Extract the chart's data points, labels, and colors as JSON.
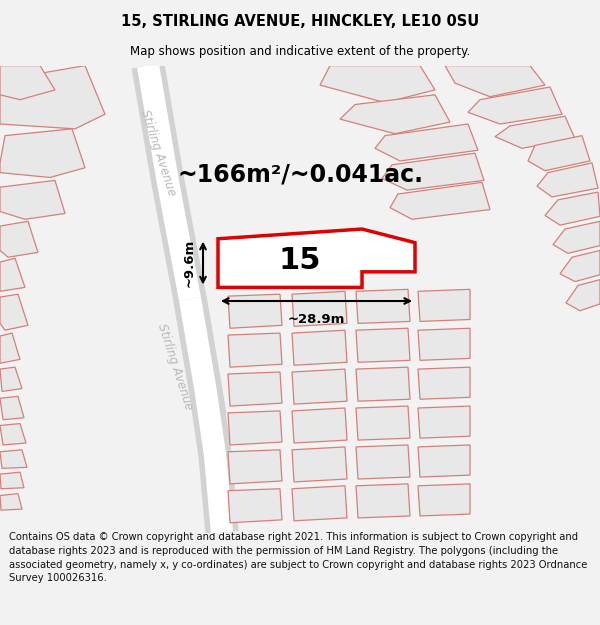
{
  "title": "15, STIRLING AVENUE, HINCKLEY, LE10 0SU",
  "subtitle": "Map shows position and indicative extent of the property.",
  "footer": "Contains OS data © Crown copyright and database right 2021. This information is subject to Crown copyright and database rights 2023 and is reproduced with the permission of HM Land Registry. The polygons (including the associated geometry, namely x, y co-ordinates) are subject to Crown copyright and database rights 2023 Ordnance Survey 100026316.",
  "area_label": "~166m²/~0.041ac.",
  "number_label": "15",
  "width_label": "~28.9m",
  "height_label": "~9.6m",
  "bg_color": "#f2f2f2",
  "map_bg": "#ffffff",
  "bld_fill": "#e8e8e8",
  "bld_edge": "#d4807a",
  "road_fill": "#d5d5d5",
  "highlight_edge": "#e00000",
  "highlight_fill": "#ffffff",
  "road_label_color": "#b8b8b8",
  "title_fontsize": 10.5,
  "subtitle_fontsize": 8.5,
  "footer_fontsize": 7.2,
  "area_fontsize": 17,
  "num_fontsize": 22,
  "meas_fontsize": 9.5
}
